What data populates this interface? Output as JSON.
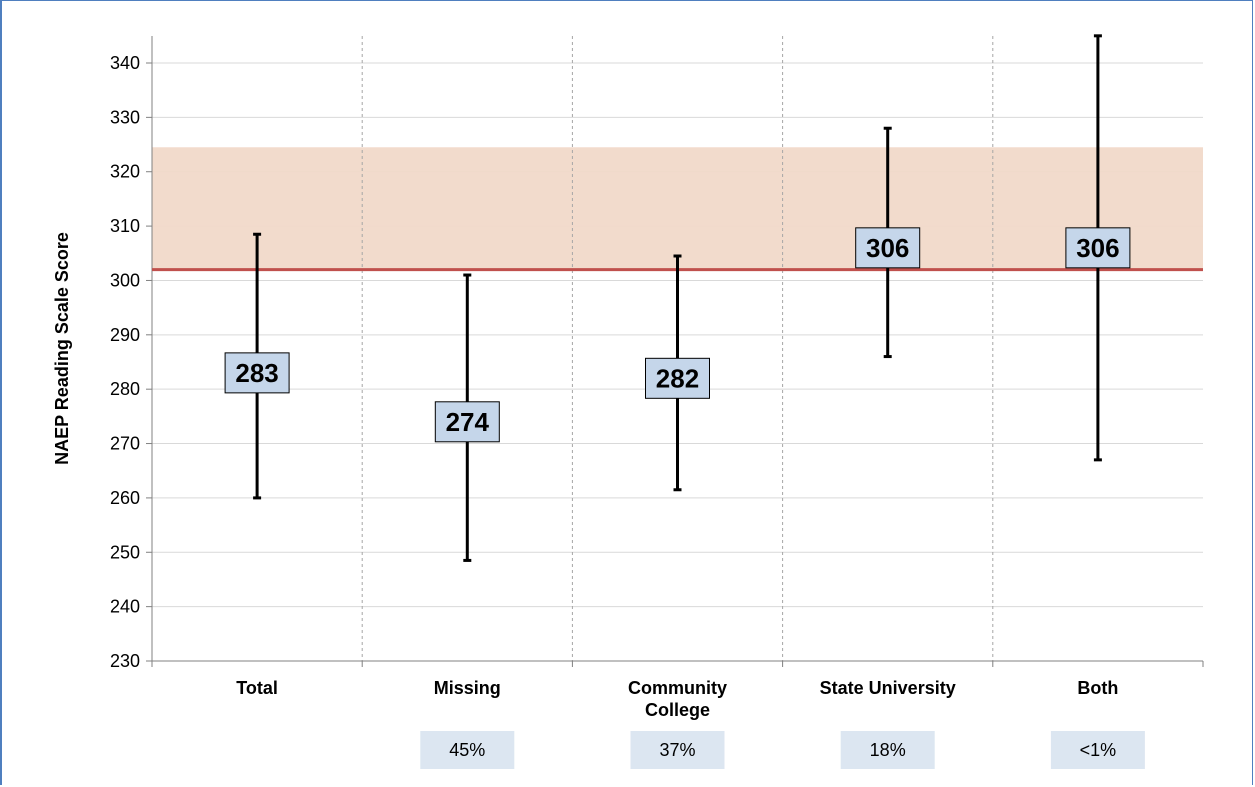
{
  "chart_data": {
    "type": "error-bar",
    "ylabel": "NAEP Reading Scale Score",
    "ylim": [
      230,
      345
    ],
    "yticks": [
      230,
      240,
      250,
      260,
      270,
      280,
      290,
      300,
      310,
      320,
      330,
      340
    ],
    "grid": true,
    "categories": [
      {
        "label": [
          "Total"
        ],
        "value": 283,
        "low": 260,
        "high": 308.5,
        "share": ""
      },
      {
        "label": [
          "Missing"
        ],
        "value": 274,
        "low": 248.5,
        "high": 301,
        "share": "45%"
      },
      {
        "label": [
          "Community",
          "College"
        ],
        "value": 282,
        "low": 261.5,
        "high": 304.5,
        "share": "37%"
      },
      {
        "label": [
          "State University"
        ],
        "value": 306,
        "low": 286,
        "high": 328,
        "share": "18%"
      },
      {
        "label": [
          "Both"
        ],
        "value": 306,
        "low": 267,
        "high": 345,
        "share": "<1%"
      }
    ],
    "reference_band": {
      "low": 302,
      "high": 324.5,
      "color": "#f1d9c9"
    },
    "reference_line": {
      "value": 302,
      "color": "#c0504d"
    },
    "colors": {
      "label_box": "#c5d6ea",
      "share_box": "#dce6f1",
      "grid": "#d9d9d9",
      "bar": "#000000"
    }
  }
}
